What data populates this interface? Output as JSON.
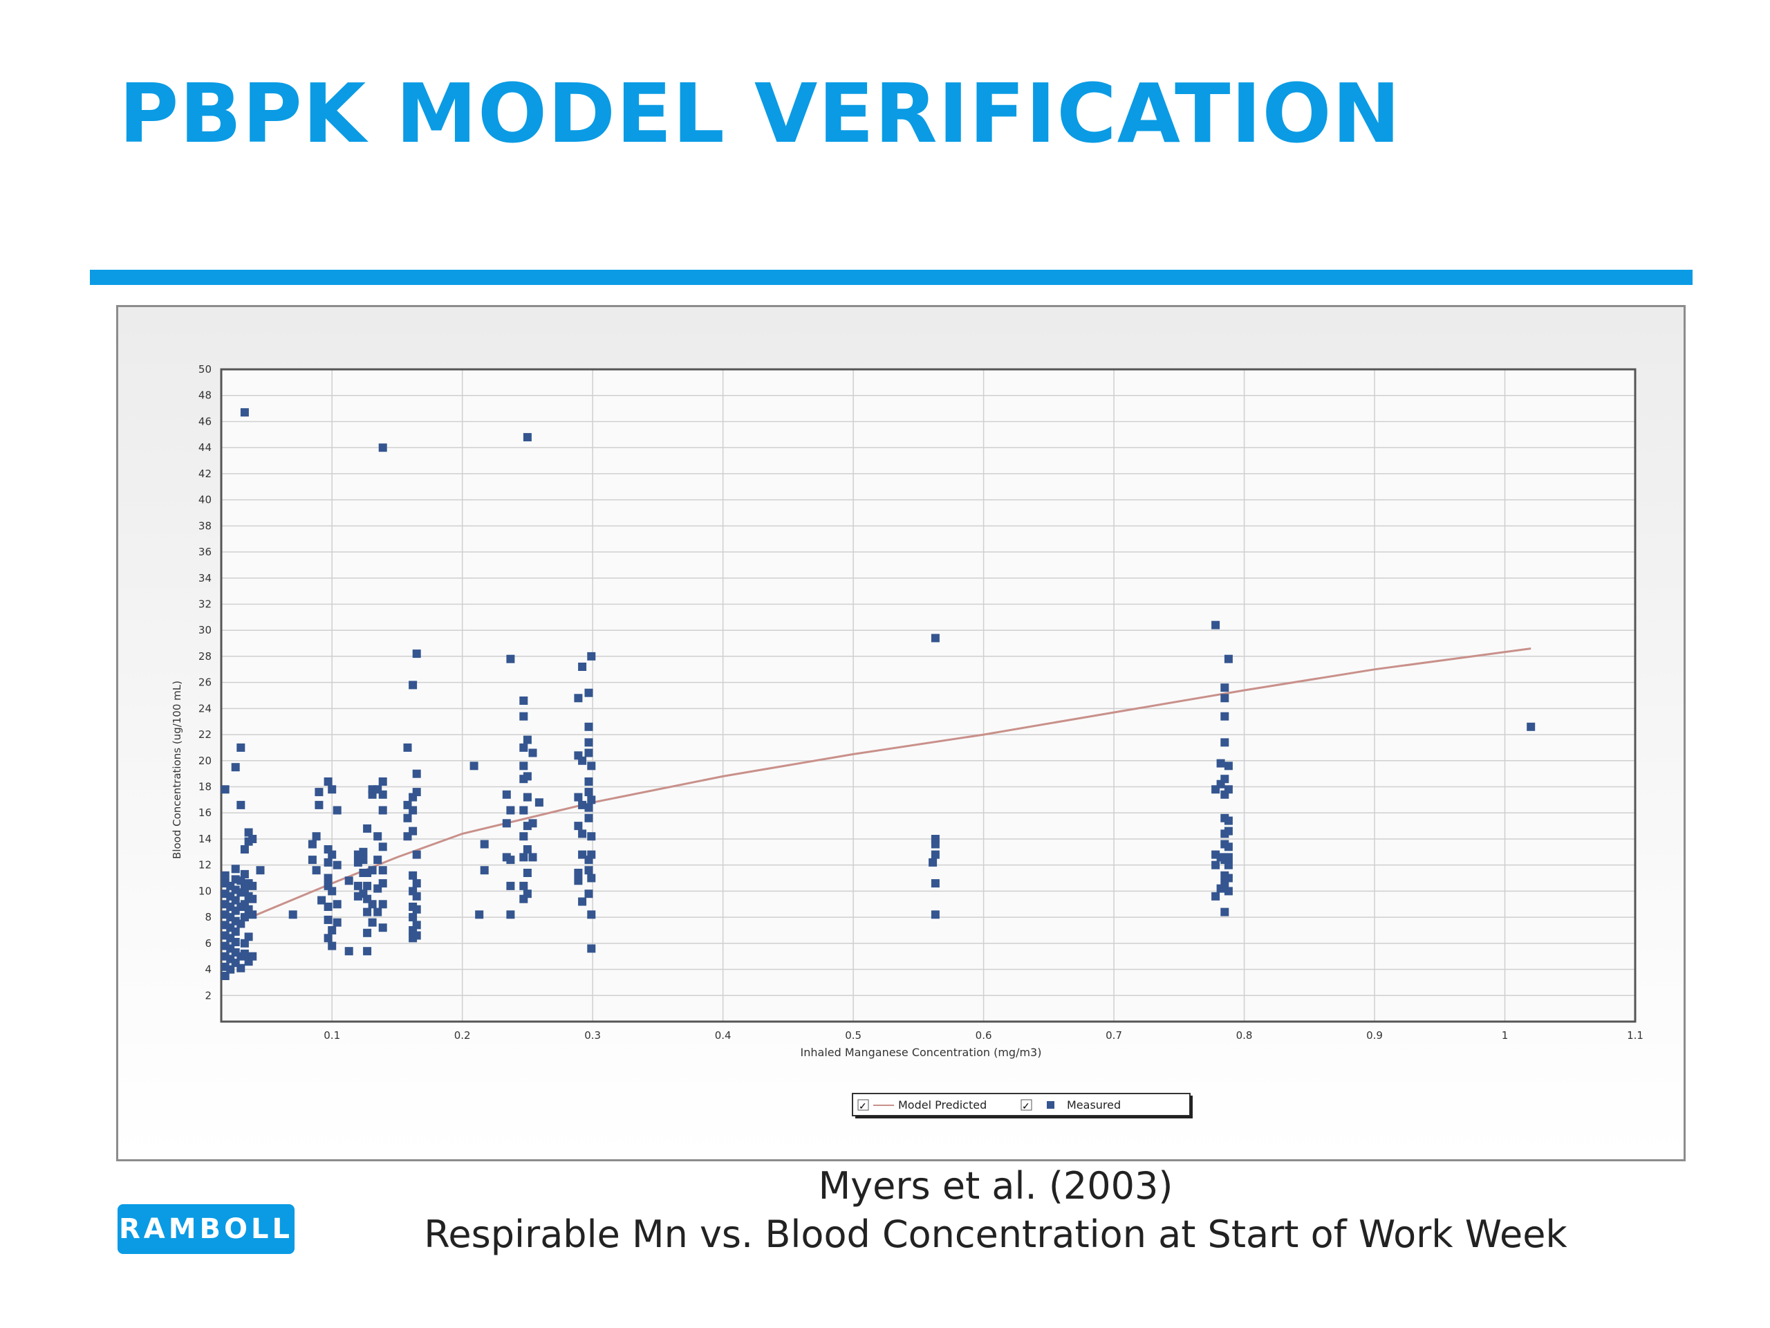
{
  "slide": {
    "title": "PBPK MODEL VERIFICATION",
    "caption_line1": "Myers et al. (2003)",
    "caption_line2": "Respirable Mn vs. Blood Concentration at Start of Work Week",
    "logo_text": "RAMBOLL"
  },
  "colors": {
    "accent": "#0a9be4",
    "measured_marker": "#34558f",
    "model_line": "#c9908a",
    "grid": "#cfcfcf"
  },
  "chart_data": {
    "type": "scatter",
    "title": "",
    "xlabel": "Inhaled Manganese Concentration (mg/m3)",
    "ylabel": "Blood Concentrations (ug/100 mL)",
    "xlim": [
      0.015,
      1.1
    ],
    "ylim": [
      0,
      50
    ],
    "x_ticks": [
      "0.1",
      "0.2",
      "0.3",
      "0.4",
      "0.5",
      "0.6",
      "0.7",
      "0.8",
      "0.9",
      "1",
      "1.1"
    ],
    "y_ticks": [
      "2",
      "4",
      "6",
      "8",
      "10",
      "12",
      "14",
      "16",
      "18",
      "20",
      "22",
      "24",
      "26",
      "28",
      "30",
      "32",
      "34",
      "36",
      "38",
      "40",
      "42",
      "44",
      "46",
      "48",
      "50"
    ],
    "grid": true,
    "legend_position": "bottom-center",
    "legend": [
      {
        "label": "Model Predicted",
        "marker": "line",
        "checked": "✓"
      },
      {
        "label": "Measured",
        "marker": "square",
        "checked": "✓"
      }
    ],
    "series": [
      {
        "name": "Model Predicted",
        "type": "line",
        "points": [
          [
            0.04,
            8.1
          ],
          [
            0.1,
            10.6
          ],
          [
            0.15,
            12.6
          ],
          [
            0.2,
            14.4
          ],
          [
            0.3,
            16.8
          ],
          [
            0.4,
            18.8
          ],
          [
            0.5,
            20.5
          ],
          [
            0.6,
            22.0
          ],
          [
            0.7,
            23.7
          ],
          [
            0.8,
            25.4
          ],
          [
            0.9,
            27.0
          ],
          [
            1.02,
            28.6
          ]
        ]
      },
      {
        "name": "Measured",
        "type": "scatter",
        "points": [
          [
            0.018,
            3.5
          ],
          [
            0.018,
            4.2
          ],
          [
            0.018,
            5.0
          ],
          [
            0.018,
            5.8
          ],
          [
            0.018,
            6.6
          ],
          [
            0.018,
            7.4
          ],
          [
            0.018,
            8.2
          ],
          [
            0.018,
            9.0
          ],
          [
            0.018,
            9.8
          ],
          [
            0.018,
            10.6
          ],
          [
            0.018,
            11.2
          ],
          [
            0.018,
            17.8
          ],
          [
            0.022,
            4.0
          ],
          [
            0.022,
            4.8
          ],
          [
            0.022,
            5.6
          ],
          [
            0.022,
            6.4
          ],
          [
            0.022,
            7.2
          ],
          [
            0.022,
            8.0
          ],
          [
            0.022,
            8.8
          ],
          [
            0.022,
            9.6
          ],
          [
            0.022,
            10.4
          ],
          [
            0.026,
            4.5
          ],
          [
            0.026,
            5.3
          ],
          [
            0.026,
            6.1
          ],
          [
            0.026,
            6.9
          ],
          [
            0.026,
            7.7
          ],
          [
            0.026,
            8.5
          ],
          [
            0.026,
            9.3
          ],
          [
            0.026,
            10.1
          ],
          [
            0.026,
            10.9
          ],
          [
            0.026,
            11.7
          ],
          [
            0.026,
            19.5
          ],
          [
            0.03,
            4.1
          ],
          [
            0.03,
            5.0
          ],
          [
            0.03,
            7.5
          ],
          [
            0.03,
            8.8
          ],
          [
            0.03,
            9.9
          ],
          [
            0.03,
            10.8
          ],
          [
            0.03,
            16.6
          ],
          [
            0.03,
            21.0
          ],
          [
            0.033,
            5.2
          ],
          [
            0.033,
            6.0
          ],
          [
            0.033,
            8.0
          ],
          [
            0.033,
            9.0
          ],
          [
            0.033,
            10.2
          ],
          [
            0.033,
            11.3
          ],
          [
            0.033,
            13.2
          ],
          [
            0.033,
            46.7
          ],
          [
            0.036,
            4.6
          ],
          [
            0.036,
            6.5
          ],
          [
            0.036,
            8.6
          ],
          [
            0.036,
            9.6
          ],
          [
            0.036,
            10.6
          ],
          [
            0.036,
            13.8
          ],
          [
            0.036,
            14.5
          ],
          [
            0.039,
            5.0
          ],
          [
            0.039,
            8.2
          ],
          [
            0.039,
            9.4
          ],
          [
            0.039,
            10.4
          ],
          [
            0.039,
            14.0
          ],
          [
            0.045,
            11.6
          ],
          [
            0.07,
            8.2
          ],
          [
            0.085,
            12.4
          ],
          [
            0.085,
            13.6
          ],
          [
            0.088,
            11.6
          ],
          [
            0.088,
            14.2
          ],
          [
            0.09,
            16.6
          ],
          [
            0.09,
            17.6
          ],
          [
            0.092,
            9.3
          ],
          [
            0.097,
            6.4
          ],
          [
            0.097,
            7.8
          ],
          [
            0.097,
            8.8
          ],
          [
            0.097,
            10.4
          ],
          [
            0.097,
            11.0
          ],
          [
            0.097,
            12.2
          ],
          [
            0.097,
            13.2
          ],
          [
            0.097,
            18.4
          ],
          [
            0.1,
            5.8
          ],
          [
            0.1,
            7.0
          ],
          [
            0.1,
            10.0
          ],
          [
            0.1,
            12.8
          ],
          [
            0.1,
            17.8
          ],
          [
            0.104,
            7.6
          ],
          [
            0.104,
            9.0
          ],
          [
            0.104,
            12.0
          ],
          [
            0.104,
            16.2
          ],
          [
            0.113,
            5.4
          ],
          [
            0.113,
            10.8
          ],
          [
            0.12,
            9.6
          ],
          [
            0.12,
            10.4
          ],
          [
            0.12,
            12.2
          ],
          [
            0.12,
            12.8
          ],
          [
            0.124,
            9.8
          ],
          [
            0.124,
            11.4
          ],
          [
            0.124,
            12.4
          ],
          [
            0.124,
            13.0
          ],
          [
            0.127,
            5.4
          ],
          [
            0.127,
            6.8
          ],
          [
            0.127,
            8.4
          ],
          [
            0.127,
            9.4
          ],
          [
            0.127,
            10.4
          ],
          [
            0.127,
            11.4
          ],
          [
            0.127,
            14.8
          ],
          [
            0.131,
            7.6
          ],
          [
            0.131,
            9.0
          ],
          [
            0.131,
            11.6
          ],
          [
            0.131,
            17.4
          ],
          [
            0.131,
            17.8
          ],
          [
            0.135,
            8.4
          ],
          [
            0.135,
            10.2
          ],
          [
            0.135,
            12.4
          ],
          [
            0.135,
            14.2
          ],
          [
            0.135,
            17.8
          ],
          [
            0.139,
            7.2
          ],
          [
            0.139,
            9.0
          ],
          [
            0.139,
            10.6
          ],
          [
            0.139,
            11.6
          ],
          [
            0.139,
            13.4
          ],
          [
            0.139,
            16.2
          ],
          [
            0.139,
            17.4
          ],
          [
            0.139,
            18.4
          ],
          [
            0.139,
            44.0
          ],
          [
            0.158,
            14.2
          ],
          [
            0.158,
            15.6
          ],
          [
            0.158,
            16.6
          ],
          [
            0.158,
            21.0
          ],
          [
            0.162,
            6.4
          ],
          [
            0.162,
            7.0
          ],
          [
            0.162,
            8.0
          ],
          [
            0.162,
            8.8
          ],
          [
            0.162,
            10.0
          ],
          [
            0.162,
            11.2
          ],
          [
            0.162,
            14.6
          ],
          [
            0.162,
            16.2
          ],
          [
            0.162,
            17.2
          ],
          [
            0.162,
            25.8
          ],
          [
            0.165,
            6.6
          ],
          [
            0.165,
            7.4
          ],
          [
            0.165,
            8.6
          ],
          [
            0.165,
            9.6
          ],
          [
            0.165,
            10.6
          ],
          [
            0.165,
            12.8
          ],
          [
            0.165,
            17.6
          ],
          [
            0.165,
            19.0
          ],
          [
            0.165,
            28.2
          ],
          [
            0.209,
            19.6
          ],
          [
            0.213,
            8.2
          ],
          [
            0.217,
            11.6
          ],
          [
            0.217,
            13.6
          ],
          [
            0.234,
            12.6
          ],
          [
            0.234,
            15.2
          ],
          [
            0.234,
            17.4
          ],
          [
            0.237,
            8.2
          ],
          [
            0.237,
            10.4
          ],
          [
            0.237,
            12.4
          ],
          [
            0.237,
            16.2
          ],
          [
            0.237,
            27.8
          ],
          [
            0.247,
            9.4
          ],
          [
            0.247,
            10.4
          ],
          [
            0.247,
            12.6
          ],
          [
            0.247,
            14.2
          ],
          [
            0.247,
            16.2
          ],
          [
            0.247,
            18.6
          ],
          [
            0.247,
            19.6
          ],
          [
            0.247,
            21.0
          ],
          [
            0.247,
            23.4
          ],
          [
            0.247,
            24.6
          ],
          [
            0.25,
            9.8
          ],
          [
            0.25,
            11.4
          ],
          [
            0.25,
            13.2
          ],
          [
            0.25,
            15.0
          ],
          [
            0.25,
            17.2
          ],
          [
            0.25,
            18.8
          ],
          [
            0.25,
            21.6
          ],
          [
            0.25,
            44.8
          ],
          [
            0.254,
            12.6
          ],
          [
            0.254,
            15.2
          ],
          [
            0.254,
            20.6
          ],
          [
            0.259,
            16.8
          ],
          [
            0.289,
            10.8
          ],
          [
            0.289,
            11.4
          ],
          [
            0.289,
            15.0
          ],
          [
            0.289,
            17.2
          ],
          [
            0.289,
            20.4
          ],
          [
            0.289,
            24.8
          ],
          [
            0.292,
            9.2
          ],
          [
            0.292,
            12.8
          ],
          [
            0.292,
            14.4
          ],
          [
            0.292,
            16.6
          ],
          [
            0.292,
            20.0
          ],
          [
            0.292,
            27.2
          ],
          [
            0.297,
            9.8
          ],
          [
            0.297,
            11.6
          ],
          [
            0.297,
            12.4
          ],
          [
            0.297,
            15.6
          ],
          [
            0.297,
            16.4
          ],
          [
            0.297,
            17.6
          ],
          [
            0.297,
            18.4
          ],
          [
            0.297,
            20.6
          ],
          [
            0.297,
            21.4
          ],
          [
            0.297,
            22.6
          ],
          [
            0.297,
            25.2
          ],
          [
            0.299,
            5.6
          ],
          [
            0.299,
            8.2
          ],
          [
            0.299,
            11.0
          ],
          [
            0.299,
            12.8
          ],
          [
            0.299,
            14.2
          ],
          [
            0.299,
            17.0
          ],
          [
            0.299,
            19.6
          ],
          [
            0.299,
            28.0
          ],
          [
            0.561,
            12.2
          ],
          [
            0.563,
            12.8
          ],
          [
            0.563,
            13.6
          ],
          [
            0.563,
            14.0
          ],
          [
            0.563,
            10.6
          ],
          [
            0.563,
            8.2
          ],
          [
            0.563,
            29.4
          ],
          [
            0.778,
            9.6
          ],
          [
            0.778,
            12.0
          ],
          [
            0.778,
            12.8
          ],
          [
            0.778,
            17.8
          ],
          [
            0.778,
            30.4
          ],
          [
            0.782,
            10.2
          ],
          [
            0.782,
            12.6
          ],
          [
            0.782,
            18.2
          ],
          [
            0.782,
            19.8
          ],
          [
            0.785,
            8.4
          ],
          [
            0.785,
            10.6
          ],
          [
            0.785,
            11.2
          ],
          [
            0.785,
            12.4
          ],
          [
            0.785,
            13.6
          ],
          [
            0.785,
            14.4
          ],
          [
            0.785,
            15.6
          ],
          [
            0.785,
            17.4
          ],
          [
            0.785,
            18.6
          ],
          [
            0.785,
            21.4
          ],
          [
            0.785,
            23.4
          ],
          [
            0.785,
            24.8
          ],
          [
            0.785,
            25.6
          ],
          [
            0.788,
            10.0
          ],
          [
            0.788,
            11.0
          ],
          [
            0.788,
            12.0
          ],
          [
            0.788,
            12.6
          ],
          [
            0.788,
            13.4
          ],
          [
            0.788,
            14.6
          ],
          [
            0.788,
            15.4
          ],
          [
            0.788,
            17.8
          ],
          [
            0.788,
            19.6
          ],
          [
            0.788,
            27.8
          ],
          [
            1.02,
            22.6
          ]
        ]
      }
    ]
  }
}
